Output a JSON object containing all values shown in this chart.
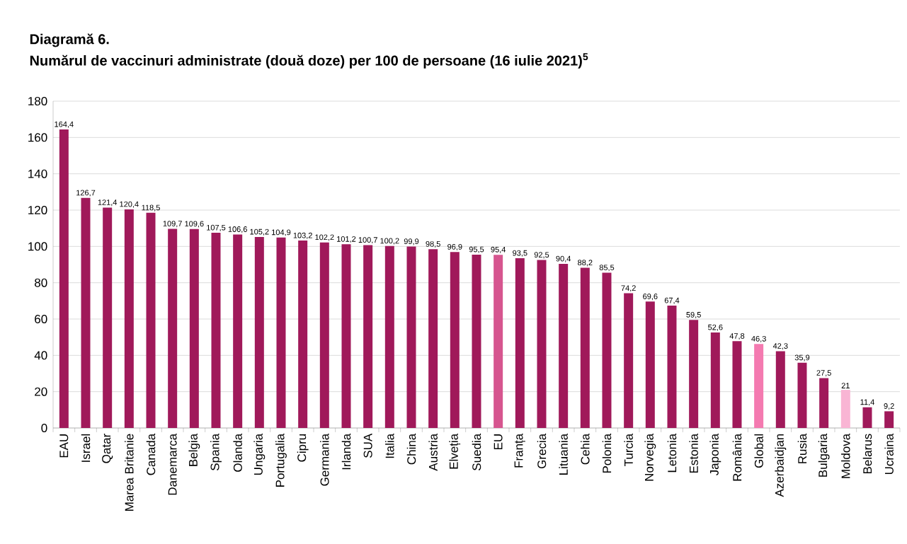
{
  "chart_data": {
    "type": "bar",
    "title": "Diagramă 6.",
    "subtitle": "Numărul de vaccinuri administrate (două doze) per 100 de persoane (16 iulie 2021)$^{5}$",
    "categories": [
      "EAU",
      "Israel",
      "Qatar",
      "Marea Britanie",
      "Canada",
      "Danemarca",
      "Belgia",
      "Spania",
      "Olanda",
      "Ungaria",
      "Portugalia",
      "Cipru",
      "Germania",
      "Irlanda",
      "SUA",
      "Italia",
      "China",
      "Austria",
      "Elveția",
      "Suedia",
      "EU",
      "Franța",
      "Grecia",
      "Lituania",
      "Cehia",
      "Polonia",
      "Turcia",
      "Norvegia",
      "Letonia",
      "Estonia",
      "Japonia",
      "România",
      "Global",
      "Azerbaidjan",
      "Rusia",
      "Bulgaria",
      "Moldova",
      "Belarus",
      "Ucraina"
    ],
    "values": [
      164.4,
      126.7,
      121.4,
      120.4,
      118.5,
      109.7,
      109.6,
      107.5,
      106.6,
      105.2,
      104.9,
      103.2,
      102.2,
      101.2,
      100.7,
      100.2,
      99.9,
      98.5,
      96.9,
      95.5,
      95.4,
      93.5,
      92.5,
      90.4,
      88.2,
      85.5,
      74.2,
      69.6,
      67.4,
      59.5,
      52.6,
      47.8,
      46.3,
      42.3,
      35.9,
      27.5,
      21,
      11.4,
      9.2
    ],
    "value_labels": [
      "164,4",
      "126,7",
      "121,4",
      "120,4",
      "118,5",
      "109,7",
      "109,6",
      "107,5",
      "106,6",
      "105,2",
      "104,9",
      "103,2",
      "102,2",
      "101,2",
      "100,7",
      "100,2",
      "99,9",
      "98,5",
      "96,9",
      "95,5",
      "95,4",
      "93,5",
      "92,5",
      "90,4",
      "88,2",
      "85,5",
      "74,2",
      "69,6",
      "67,4",
      "59,5",
      "52,6",
      "47,8",
      "46,3",
      "42,3",
      "35,9",
      "27,5",
      "21",
      "11,4",
      "9,2"
    ],
    "colors": [
      "#a0195a",
      "#a0195a",
      "#a0195a",
      "#a0195a",
      "#a0195a",
      "#a0195a",
      "#a0195a",
      "#a0195a",
      "#a0195a",
      "#a0195a",
      "#a0195a",
      "#a0195a",
      "#a0195a",
      "#a0195a",
      "#a0195a",
      "#a0195a",
      "#a0195a",
      "#a0195a",
      "#a0195a",
      "#a0195a",
      "#d6558f",
      "#a0195a",
      "#a0195a",
      "#a0195a",
      "#a0195a",
      "#a0195a",
      "#a0195a",
      "#a0195a",
      "#a0195a",
      "#a0195a",
      "#a0195a",
      "#a0195a",
      "#f47ab0",
      "#a0195a",
      "#a0195a",
      "#a0195a",
      "#f9b5d4",
      "#a0195a",
      "#a0195a"
    ],
    "ylim": [
      0,
      180
    ],
    "yticks": [
      0,
      20,
      40,
      60,
      80,
      100,
      120,
      140,
      160,
      180
    ],
    "grid": "y"
  }
}
